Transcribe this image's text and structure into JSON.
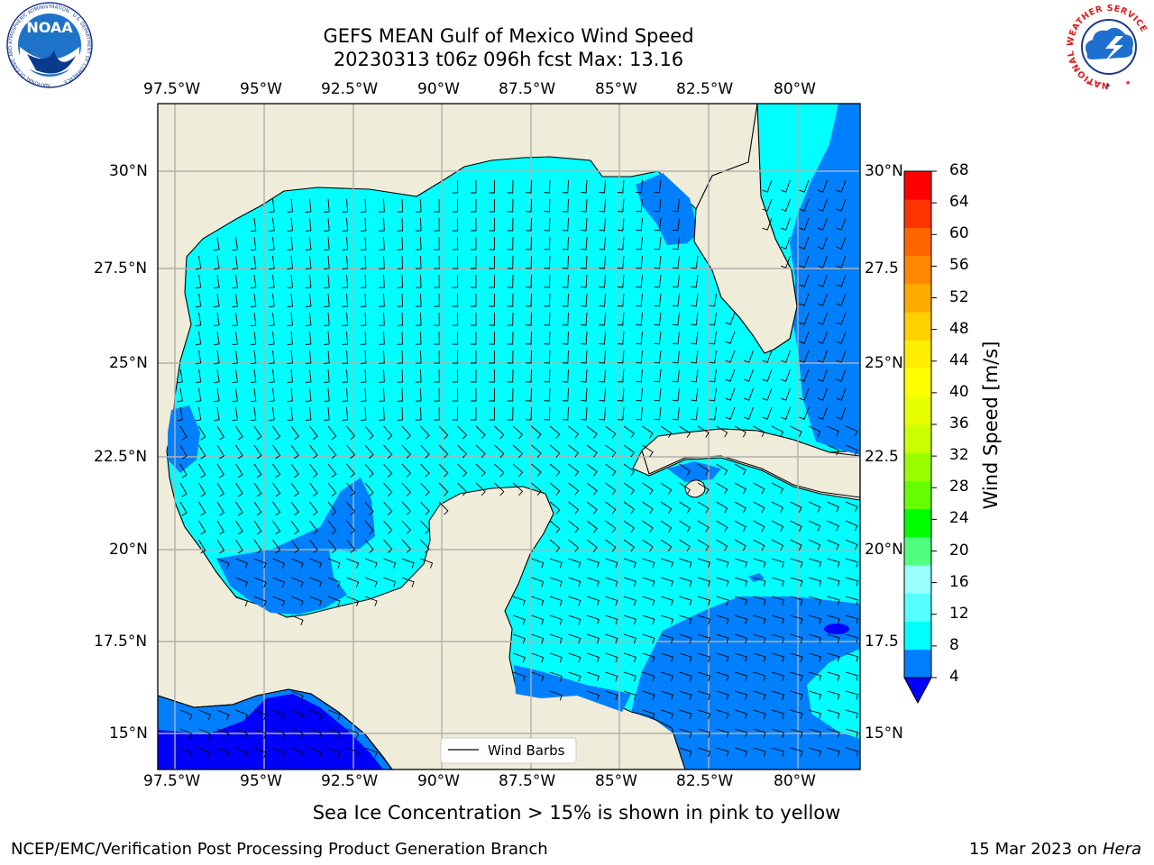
{
  "title": {
    "line1": "GEFS MEAN Gulf of Mexico Wind Speed",
    "line2": "20230313 t06z 096h fcst   Max: 13.16"
  },
  "logos": {
    "noara_text": "NOAA",
    "noaa_ring_text": "NATIONAL OCEANIC AND ATMOSPHERIC ADMINISTRATION · U.S. DEPARTMENT OF COMMERCE",
    "nws_ring_text": "NATIONAL WEATHER SERVICE"
  },
  "map": {
    "lon_labels": [
      "97.5°W",
      "95°W",
      "92.5°W",
      "90°W",
      "87.5°W",
      "85°W",
      "82.5°W",
      "80°W"
    ],
    "lat_labels_left": [
      "30°N",
      "27.5°N",
      "25°N",
      "22.5°N",
      "20°N",
      "17.5°N",
      "15°N"
    ],
    "lat_labels_right": [
      "30°N",
      "27.5",
      "25°N",
      "22.5",
      "20°N",
      "17.5",
      "15°N"
    ],
    "legend_label": "Wind Barbs",
    "colors": {
      "land": "#efedda",
      "level_4_8": "#0080ff",
      "level_8_12": "#00ffff",
      "level_below_4": "#0000ff",
      "grid": "#b0b0b0"
    }
  },
  "colorbar": {
    "label": "Wind Speed [m/s]",
    "ticks": [
      "68",
      "64",
      "60",
      "56",
      "52",
      "48",
      "44",
      "40",
      "36",
      "32",
      "28",
      "24",
      "20",
      "16",
      "12",
      "8",
      "4"
    ],
    "colors": [
      "#ff0000",
      "#ff3300",
      "#ff6600",
      "#ff8800",
      "#ffaa00",
      "#ffd000",
      "#ffee00",
      "#ffff00",
      "#e8ff00",
      "#ccff00",
      "#99ff00",
      "#66ff00",
      "#00ff00",
      "#50ff80",
      "#99ffff",
      "#55ffff",
      "#00ffff",
      "#0080ff"
    ],
    "extend_color": "#0000ff"
  },
  "note": "Sea Ice Concentration > 15% is shown in pink to yellow",
  "footer": {
    "left": "NCEP/EMC/Verification Post Processing Product Generation Branch",
    "date": "15 Mar 2023 on ",
    "machine": "Hera"
  }
}
